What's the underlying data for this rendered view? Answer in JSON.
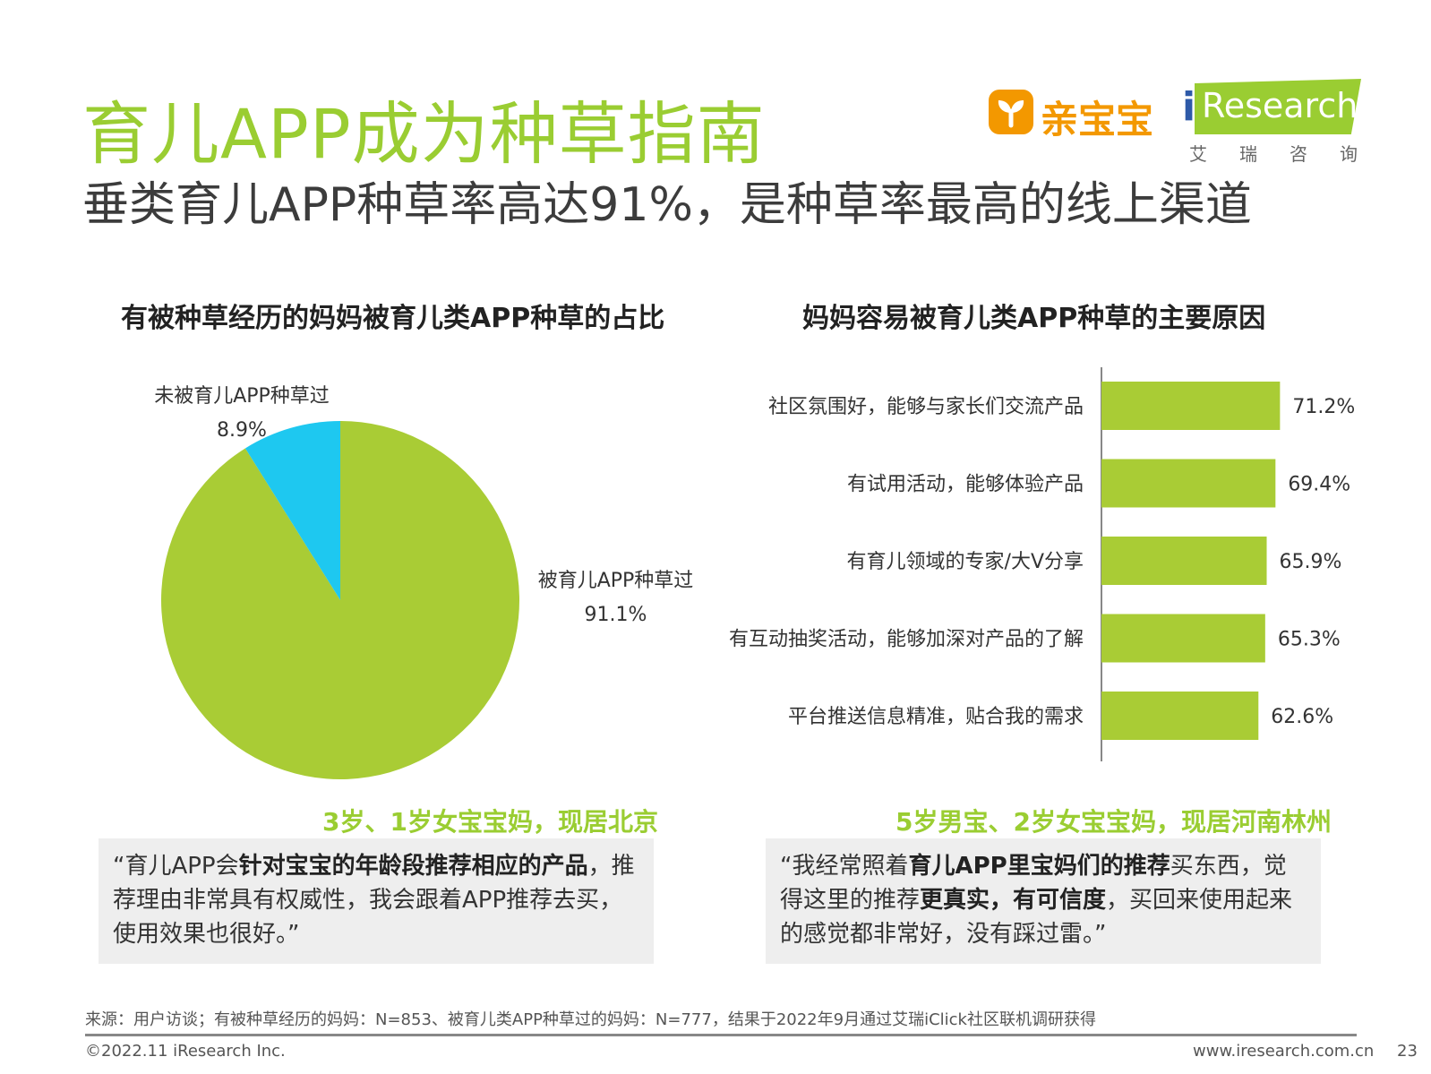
{
  "title": "育儿APP成为种草指南",
  "subtitle": "垂类育儿APP种草率高达91%，是种草率最高的线上渠道",
  "logos": {
    "qinbaobao": "亲宝宝",
    "iresearch_i": "i",
    "iresearch_word": "Research",
    "iresearch_cn": "艾瑞咨询"
  },
  "brand_colors": {
    "green": "#A9CC35",
    "blue": "#1EC8F0",
    "orange": "#F39800"
  },
  "chart_data": [
    {
      "type": "pie",
      "title": "有被种草经历的妈妈被育儿类APP种草的占比",
      "slices": [
        {
          "label": "被育儿APP种草过",
          "value": 91.1,
          "display": "91.1%",
          "color": "#A9CC35"
        },
        {
          "label": "未被育儿APP种草过",
          "value": 8.9,
          "display": "8.9%",
          "color": "#1EC8F0"
        }
      ]
    },
    {
      "type": "bar",
      "orientation": "horizontal",
      "title": "妈妈容易被育儿类APP种草的主要原因",
      "categories": [
        "社区氛围好，能够与家长们交流产品",
        "有试用活动，能够体验产品",
        "有育儿领域的专家/大V分享",
        "有互动抽奖活动，能够加深对产品的了解",
        "平台推送信息精准，贴合我的需求"
      ],
      "values": [
        71.2,
        69.4,
        65.9,
        65.3,
        62.6
      ],
      "labels": [
        "71.2%",
        "69.4%",
        "65.9%",
        "65.3%",
        "62.6%"
      ],
      "xlim": [
        0,
        100
      ],
      "color": "#A9CC35"
    }
  ],
  "quotes": [
    {
      "head": "3岁、1岁女宝宝妈，现居北京",
      "p1": "“育儿APP会",
      "b1": "针对宝宝的年龄段推荐相应的产品",
      "p2": "，推荐理由非常具有权威性，我会跟着APP推荐去买，使用效果也很好。”"
    },
    {
      "head": "5岁男宝、2岁女宝宝妈，现居河南林州",
      "p1": "“我经常照着",
      "b1": "育儿APP里宝妈们的推荐",
      "p2": "买东西，觉得这里的推荐",
      "b2": "更真实，有可信度",
      "p3": "，买回来使用起来的感觉都非常好，没有踩过雷。”"
    }
  ],
  "source": "来源：用户访谈；有被种草经历的妈妈：N=853、被育儿类APP种草过的妈妈：N=777，结果于2022年9月通过艾瑞iClick社区联机调研获得",
  "footer": {
    "copyright": "©2022.11 iResearch Inc.",
    "website": "www.iresearch.com.cn",
    "page": "23"
  }
}
